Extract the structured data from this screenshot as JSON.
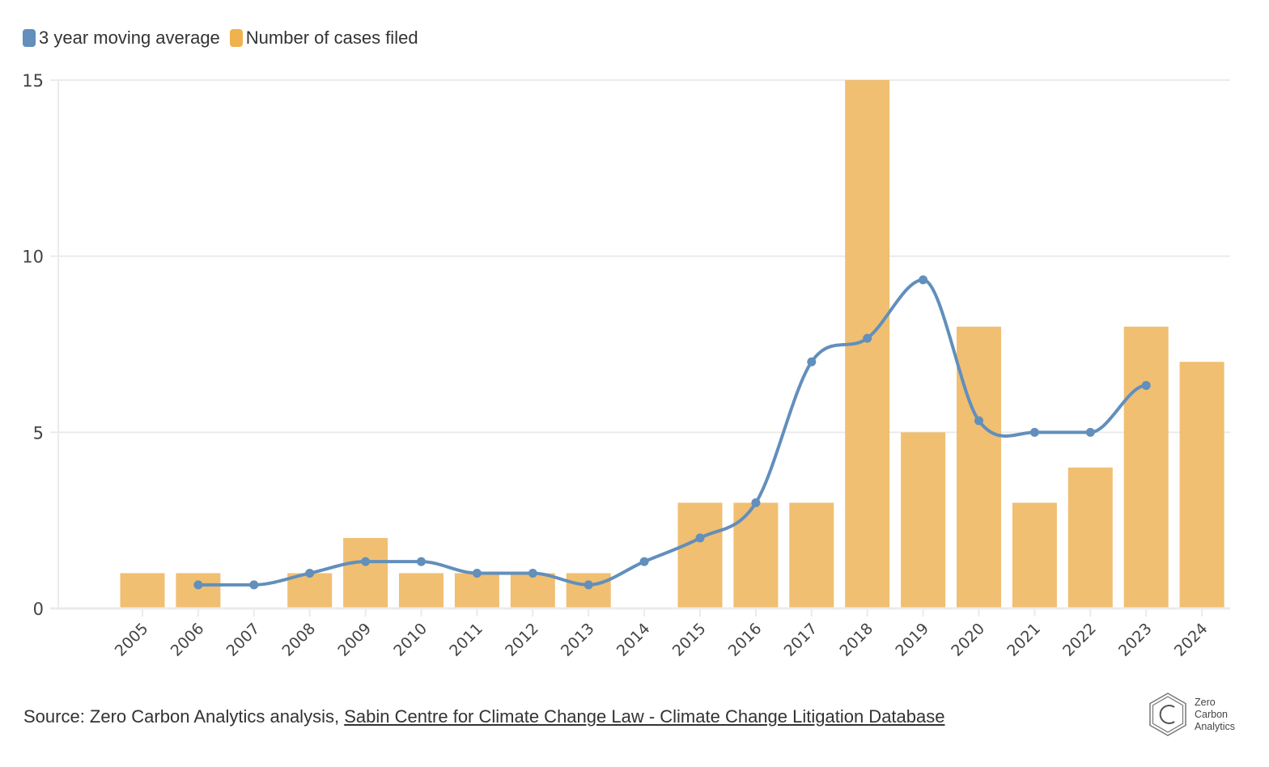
{
  "legend": {
    "items": [
      {
        "label": "3 year moving average",
        "color": "#628fbc"
      },
      {
        "label": "Number of cases filed",
        "color": "#f0b24d"
      }
    ]
  },
  "chart_data": {
    "type": "bar",
    "title": "",
    "xlabel": "",
    "ylabel": "",
    "ylim": [
      0,
      15
    ],
    "yticks": [
      0,
      5,
      10,
      15
    ],
    "grid": true,
    "legend_position": "top-left",
    "categories": [
      "2005",
      "2006",
      "2007",
      "2008",
      "2009",
      "2010",
      "2011",
      "2012",
      "2013",
      "2014",
      "2015",
      "2016",
      "2017",
      "2018",
      "2019",
      "2020",
      "2021",
      "2022",
      "2023",
      "2024"
    ],
    "series": [
      {
        "name": "Number of cases filed",
        "type": "bar",
        "color": "#f0bf71",
        "values": [
          1,
          1,
          0,
          1,
          2,
          1,
          1,
          1,
          1,
          0,
          3,
          3,
          3,
          15,
          5,
          8,
          3,
          4,
          8,
          7
        ]
      },
      {
        "name": "3 year moving average",
        "type": "line",
        "color": "#628fbc",
        "values": [
          null,
          0.67,
          0.67,
          1,
          1.33,
          1.33,
          1,
          1,
          0.67,
          1.33,
          2,
          3,
          7,
          7.67,
          9.33,
          5.33,
          5,
          5,
          6.33,
          null
        ]
      }
    ]
  },
  "footer": {
    "source_prefix": "Source: Zero Carbon Analytics analysis, ",
    "source_link": "Sabin Centre for Climate Change Law - Climate Change Litigation Database"
  },
  "logo": {
    "lines": [
      "Zero",
      "Carbon",
      "Analytics"
    ]
  }
}
